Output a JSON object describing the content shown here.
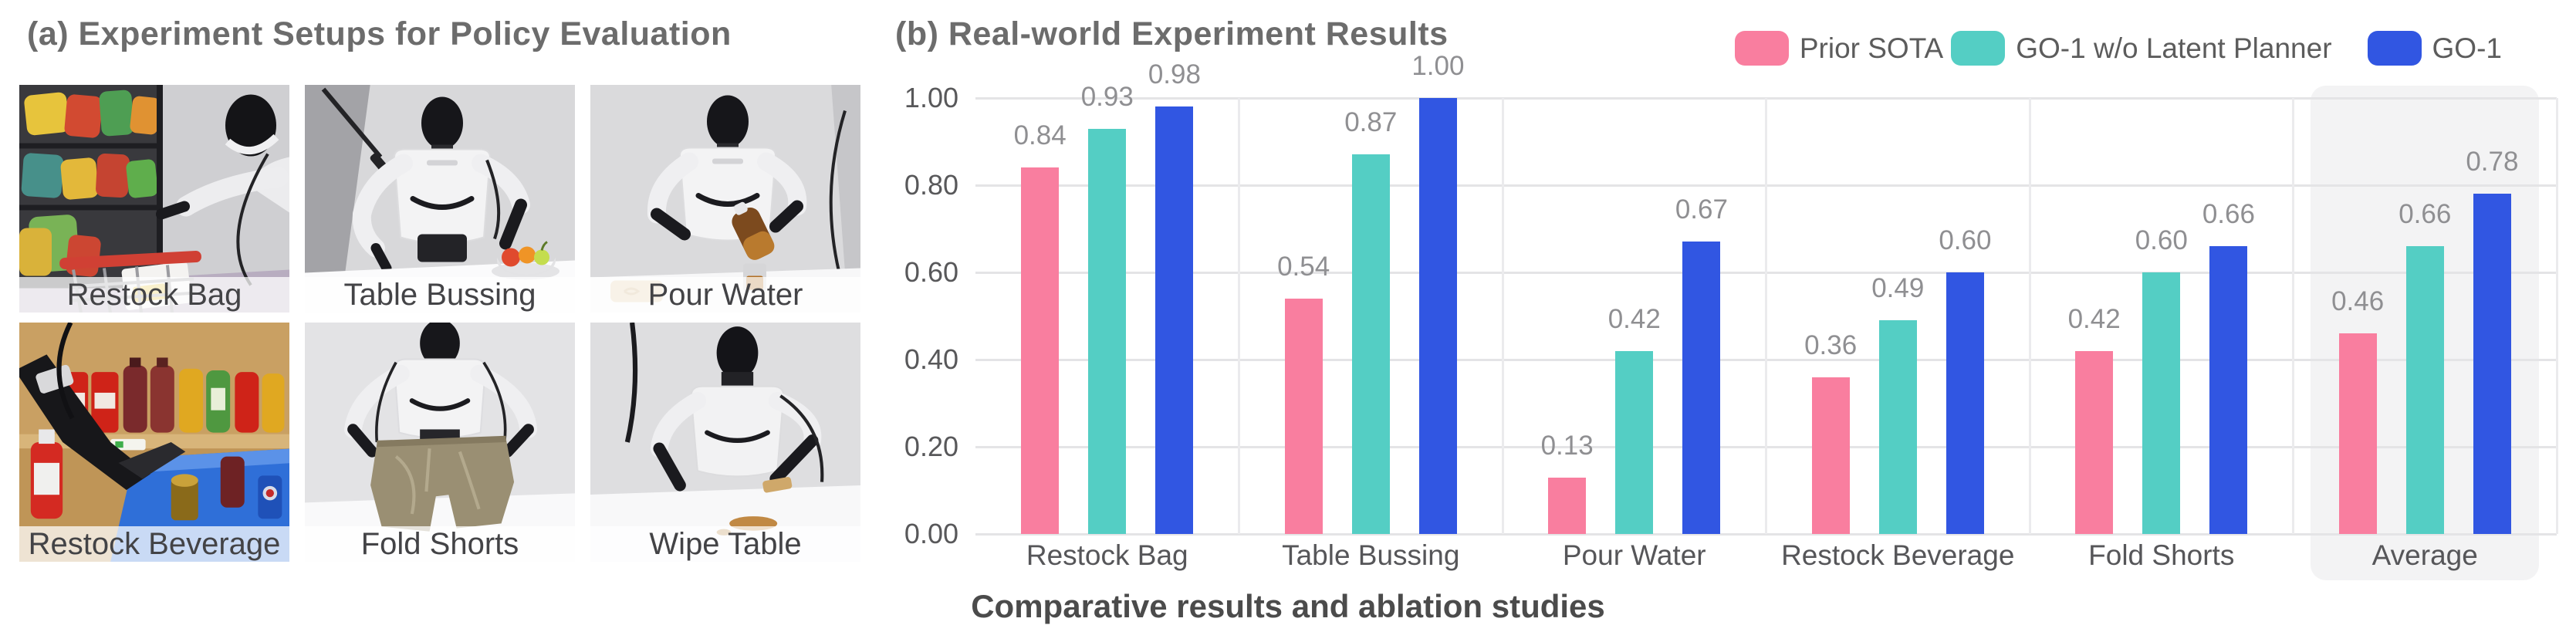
{
  "panel_a": {
    "title": "(a) Experiment Setups for Policy Evaluation",
    "setups": [
      {
        "label": "Restock Bag"
      },
      {
        "label": "Table Bussing"
      },
      {
        "label": "Pour Water"
      },
      {
        "label": "Restock Beverage"
      },
      {
        "label": "Fold Shorts"
      },
      {
        "label": "Wipe Table"
      }
    ]
  },
  "panel_b": {
    "title": "(b) Real-world Experiment Results",
    "caption": "Comparative results and ablation studies"
  },
  "chart_data": {
    "type": "bar",
    "title": "(b) Real-world Experiment Results",
    "categories": [
      "Restock Bag",
      "Table Bussing",
      "Pour Water",
      "Restock Beverage",
      "Fold Shorts",
      "Average"
    ],
    "series": [
      {
        "name": "Prior SOTA",
        "color": "#F97E9F",
        "values": [
          0.84,
          0.54,
          0.13,
          0.36,
          0.42,
          0.46
        ]
      },
      {
        "name": "GO-1 w/o Latent Planner",
        "color": "#54CEC4",
        "values": [
          0.93,
          0.87,
          0.42,
          0.49,
          0.6,
          0.66
        ]
      },
      {
        "name": "GO-1",
        "color": "#3156E2",
        "values": [
          0.98,
          1.0,
          0.67,
          0.6,
          0.66,
          0.78
        ]
      }
    ],
    "xlabel": "",
    "ylabel": "",
    "ylim": [
      0,
      1
    ],
    "yticks": [
      "0.00",
      "0.20",
      "0.40",
      "0.60",
      "0.80",
      "1.00"
    ],
    "grid": true,
    "legend_position": "top-right",
    "highlighted_category": "Average",
    "value_labels": true
  },
  "style": {
    "grid_color": "#e4e4e6",
    "highlight_color": "#f3f3f4",
    "tick_text_color": "#58585a",
    "value_text_color": "#8f8f92",
    "title_text_color": "#6c6c6c"
  }
}
